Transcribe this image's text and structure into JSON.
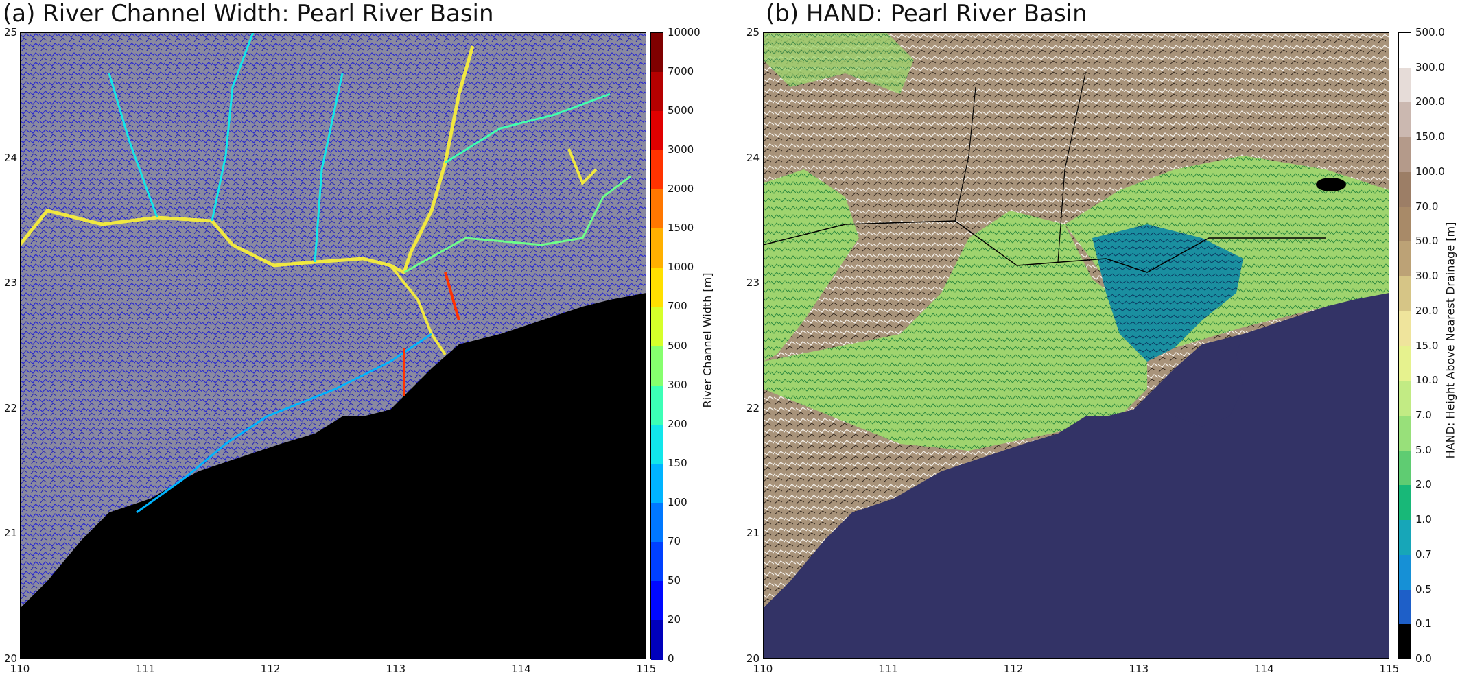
{
  "panel_a": {
    "title": "(a) River Channel Width: Pearl River Basin",
    "x_ticks": [
      "110",
      "111",
      "112",
      "113",
      "114",
      "115"
    ],
    "y_ticks": [
      "25",
      "24",
      "23",
      "22",
      "21",
      "20"
    ],
    "colorbar": {
      "label": "River Channel Width [m]",
      "levels": [
        "10000",
        "7000",
        "5000",
        "3000",
        "2000",
        "1500",
        "1000",
        "700",
        "500",
        "300",
        "200",
        "150",
        "100",
        "70",
        "50",
        "20",
        "0"
      ],
      "colors": [
        "#7f0000",
        "#b50000",
        "#e00000",
        "#ff3300",
        "#ff7700",
        "#ffb000",
        "#ffe000",
        "#d6ff2a",
        "#86ff6e",
        "#3cffb6",
        "#12e6ea",
        "#00b4ff",
        "#0078ff",
        "#0040ff",
        "#0008ff",
        "#0000bb"
      ]
    },
    "background_land": "#8a8aa0",
    "ocean": "#000000"
  },
  "panel_b": {
    "title": "(b) HAND: Pearl River Basin",
    "x_ticks": [
      "110",
      "111",
      "112",
      "113",
      "114",
      "115"
    ],
    "y_ticks": [
      "25",
      "24",
      "23",
      "22",
      "21",
      "20"
    ],
    "colorbar": {
      "label": "HAND: Height Above Nearest Drainage [m]",
      "levels": [
        "500.0",
        "300.0",
        "200.0",
        "150.0",
        "100.0",
        "70.0",
        "50.0",
        "30.0",
        "20.0",
        "15.0",
        "10.0",
        "7.0",
        "5.0",
        "2.0",
        "1.0",
        "0.7",
        "0.5",
        "0.1",
        "0.0"
      ],
      "colors": [
        "#ffffff",
        "#e6dcd8",
        "#cbb8b0",
        "#b49a8a",
        "#9c7e66",
        "#a88a68",
        "#bca276",
        "#d6c586",
        "#efe49c",
        "#e6f28e",
        "#c2eb84",
        "#98e07a",
        "#5fcc72",
        "#18b878",
        "#17a6b8",
        "#1690d6",
        "#1e5fc8",
        "#000000"
      ]
    },
    "ocean": "#333366"
  }
}
